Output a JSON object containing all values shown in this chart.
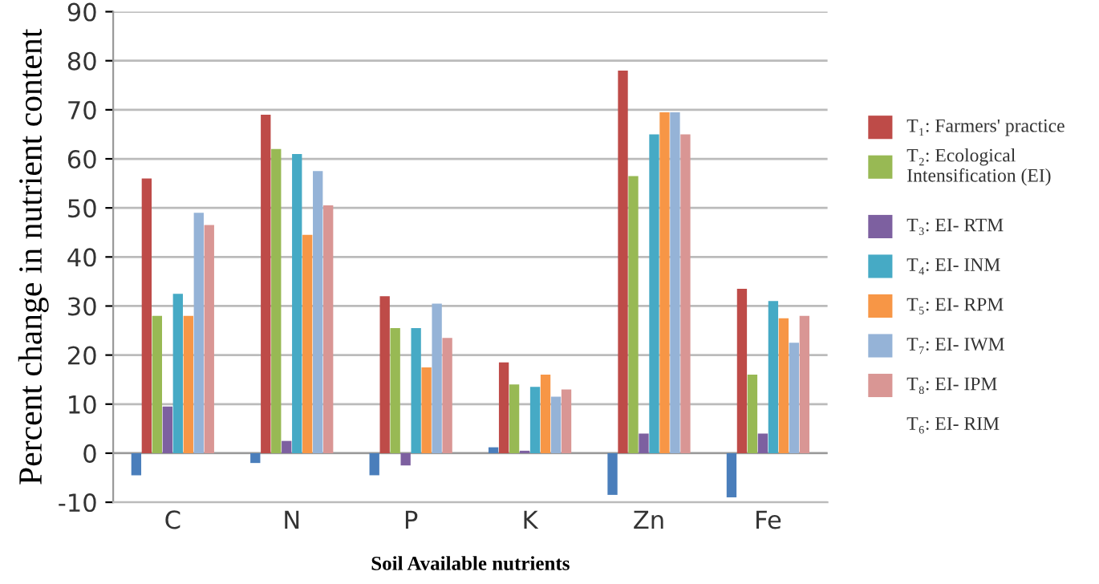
{
  "chart_data": {
    "type": "bar",
    "xlabel": "Soil Available nutrients",
    "ylabel": "Percent change in nutrient content",
    "categories": [
      "C",
      "N",
      "P",
      "K",
      "Zn",
      "Fe"
    ],
    "series": [
      {
        "color": "#4a7ebb",
        "values": [
          -4.5,
          -2,
          -4.5,
          1.2,
          -8.5,
          -9
        ]
      },
      {
        "name": "T₁: Farmers' practice",
        "color": "#be4b48",
        "values": [
          56,
          69,
          32,
          18.5,
          78,
          33.5
        ]
      },
      {
        "name": "T₂: Ecological Intensification (EI)",
        "color": "#98b954",
        "values": [
          28,
          62,
          25.5,
          14,
          56.5,
          16
        ]
      },
      {
        "name": "T₃: EI- RTM",
        "color": "#7d60a0",
        "values": [
          9.5,
          2.5,
          -2.5,
          0.5,
          4,
          4
        ]
      },
      {
        "name": "T₄: EI- INM",
        "color": "#46aac5",
        "values": [
          32.5,
          61,
          25.5,
          13.5,
          65,
          31
        ]
      },
      {
        "name": "T₅: EI- RPM",
        "color": "#f79646",
        "values": [
          28,
          44.5,
          17.5,
          16,
          69.5,
          27.5
        ]
      },
      {
        "name": "T₇: EI- IWM",
        "color": "#95b3d7",
        "values": [
          49,
          57.5,
          30.5,
          11.5,
          69.5,
          22.5
        ]
      },
      {
        "name": "T₈: EI- IPM",
        "color": "#d99694",
        "values": [
          46.5,
          50.5,
          23.5,
          13,
          65,
          28
        ]
      }
    ],
    "annotations": [
      "T₆: EI- RIM"
    ],
    "ylim": [
      -10,
      90
    ],
    "yticks": [
      -10,
      0,
      10,
      20,
      30,
      40,
      50,
      60,
      70,
      80,
      90
    ],
    "grid": "y",
    "legend": "right"
  }
}
